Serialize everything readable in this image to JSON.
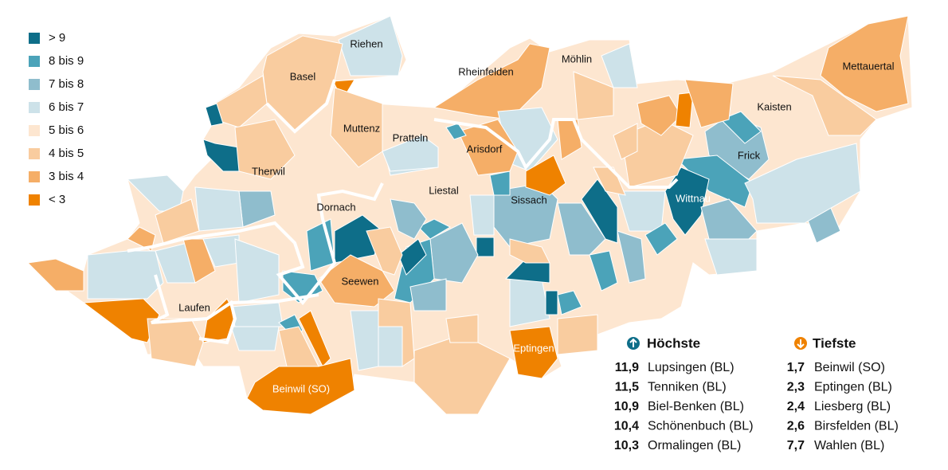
{
  "legend": {
    "items": [
      {
        "label": "> 9",
        "color": "#0e6e89"
      },
      {
        "label": "8 bis 9",
        "color": "#4ba3b9"
      },
      {
        "label": "7 bis 8",
        "color": "#8fbdcd"
      },
      {
        "label": "6 bis 7",
        "color": "#cde2e9"
      },
      {
        "label": "5 bis 6",
        "color": "#fde6d0"
      },
      {
        "label": "4 bis 5",
        "color": "#f9cc9f"
      },
      {
        "label": "3 bis 4",
        "color": "#f5ae67"
      },
      {
        "label": "< 3",
        "color": "#ef8200"
      }
    ]
  },
  "places": [
    "Riehen",
    "Basel",
    "Rheinfelden",
    "Möhlin",
    "Mettauertal",
    "Kaisten",
    "Muttenz",
    "Pratteln",
    "Arisdorf",
    "Frick",
    "Therwil",
    "Liestal",
    "Sissach",
    "Wittnau",
    "Dornach",
    "Seewen",
    "Laufen",
    "Eptingen",
    "Beinwil (SO)"
  ],
  "highest": {
    "title": "Höchste",
    "rows": [
      {
        "value": "11,9",
        "name": "Lupsingen (BL)"
      },
      {
        "value": "11,5",
        "name": "Tenniken (BL)"
      },
      {
        "value": "10,9",
        "name": "Biel-Benken (BL)"
      },
      {
        "value": "10,4",
        "name": "Schönenbuch (BL)"
      },
      {
        "value": "10,3",
        "name": "Ormalingen (BL)"
      }
    ]
  },
  "lowest": {
    "title": "Tiefste",
    "rows": [
      {
        "value": "1,7",
        "name": "Beinwil (SO)"
      },
      {
        "value": "2,3",
        "name": "Eptingen (BL)"
      },
      {
        "value": "2,4",
        "name": "Liesberg (BL)"
      },
      {
        "value": "2,6",
        "name": "Birsfelden (BL)"
      },
      {
        "value": "7,7",
        "name": "Wahlen (BL)"
      }
    ]
  }
}
